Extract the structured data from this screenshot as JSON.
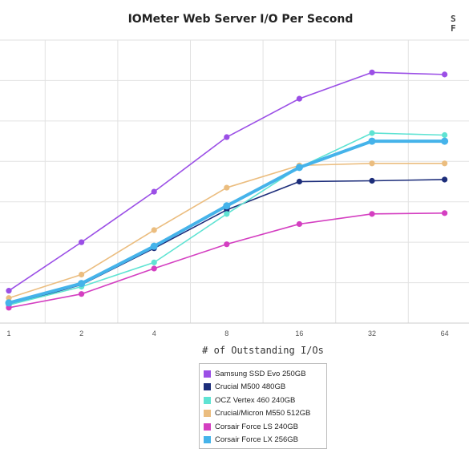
{
  "chart_data": {
    "type": "line",
    "title": "IOMeter Web Server I/O Per Second",
    "xlabel": "# of Outstanding I/Os",
    "ylabel": "",
    "categories": [
      "1",
      "2",
      "4",
      "8",
      "16",
      "32",
      "64"
    ],
    "grid": true,
    "legend_position": "bottom",
    "series": [
      {
        "name": "Samsung SSD Evo 250GB",
        "color": "#9b4fe6",
        "values": [
          0.8,
          2.0,
          3.25,
          4.6,
          5.55,
          6.2,
          6.15
        ]
      },
      {
        "name": "Crucial M500 480GB",
        "color": "#1c2d7a",
        "values": [
          0.45,
          0.95,
          1.85,
          2.8,
          3.5,
          3.52,
          3.55
        ]
      },
      {
        "name": "OCZ Vertex 460 240GB",
        "color": "#5fe3d3",
        "values": [
          0.45,
          0.9,
          1.5,
          2.7,
          3.85,
          4.7,
          4.65
        ]
      },
      {
        "name": "Crucial/Micron M550 512GB",
        "color": "#ebbd7f",
        "values": [
          0.62,
          1.2,
          2.3,
          3.35,
          3.9,
          3.95,
          3.95
        ]
      },
      {
        "name": "Corsair Force LS 240GB",
        "color": "#d43fc1",
        "values": [
          0.38,
          0.72,
          1.35,
          1.95,
          2.45,
          2.7,
          2.72
        ]
      },
      {
        "name": "Corsair Force LX 256GB",
        "color": "#45b3ea",
        "values": [
          0.5,
          0.98,
          1.9,
          2.9,
          3.85,
          4.5,
          4.5
        ]
      }
    ]
  }
}
